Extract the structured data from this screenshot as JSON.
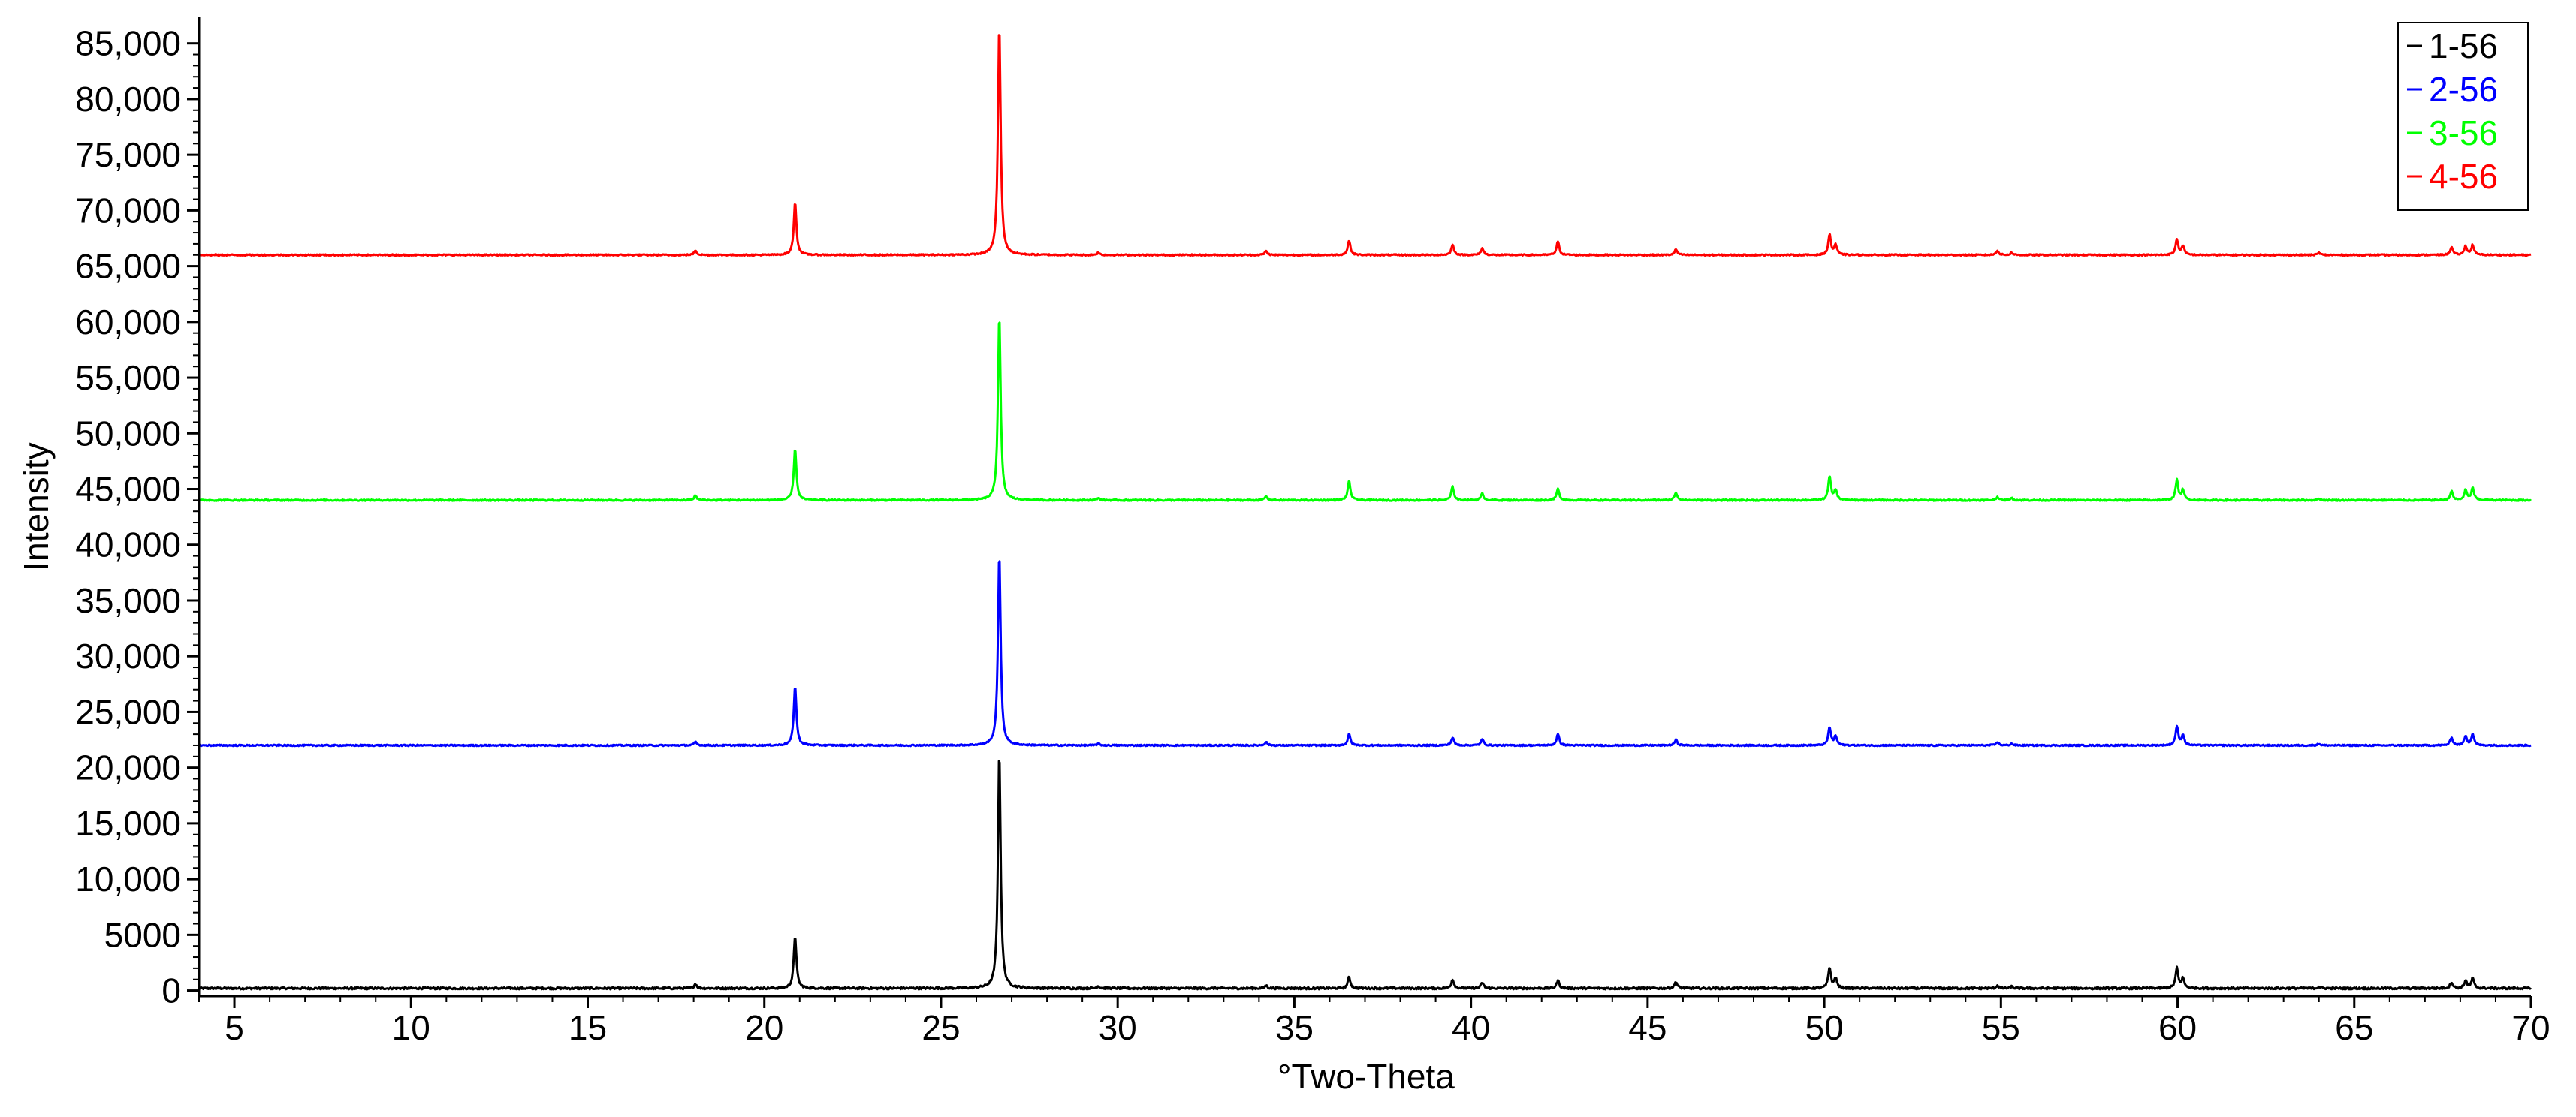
{
  "chart_data": {
    "type": "line",
    "title": "",
    "xlabel": "°Two-Theta",
    "ylabel": "Intensity",
    "xlim": [
      4,
      70
    ],
    "ylim": [
      -500,
      87000
    ],
    "xticks": [
      5,
      10,
      15,
      20,
      25,
      30,
      35,
      40,
      45,
      50,
      55,
      60,
      65,
      70
    ],
    "xtick_labels": [
      "5",
      "10",
      "15",
      "20",
      "25",
      "30",
      "35",
      "40",
      "45",
      "50",
      "55",
      "60",
      "65",
      "70"
    ],
    "yticks": [
      0,
      5000,
      10000,
      15000,
      20000,
      25000,
      30000,
      35000,
      40000,
      45000,
      50000,
      55000,
      60000,
      65000,
      70000,
      75000,
      80000,
      85000
    ],
    "ytick_labels": [
      "0",
      "5000",
      "10,000",
      "15,000",
      "20,000",
      "25,000",
      "30,000",
      "35,000",
      "40,000",
      "45,000",
      "50,000",
      "55,000",
      "60,000",
      "65,000",
      "70,000",
      "75,000",
      "80,000",
      "85,000"
    ],
    "grid": false,
    "legend_position": "top-right",
    "series": [
      {
        "name": "1-56",
        "color": "#000000",
        "baseline": 200,
        "noise": 90,
        "peaks": [
          [
            18.05,
            400
          ],
          [
            20.87,
            4700
          ],
          [
            26.65,
            21300
          ],
          [
            29.45,
            200
          ],
          [
            34.2,
            250
          ],
          [
            36.55,
            1000
          ],
          [
            39.48,
            800
          ],
          [
            40.32,
            500
          ],
          [
            42.46,
            700
          ],
          [
            45.8,
            600
          ],
          [
            50.15,
            1850
          ],
          [
            50.32,
            900
          ],
          [
            54.9,
            250
          ],
          [
            55.3,
            150
          ],
          [
            59.98,
            1800
          ],
          [
            60.15,
            900
          ],
          [
            64.0,
            150
          ],
          [
            67.75,
            550
          ],
          [
            68.15,
            700
          ],
          [
            68.35,
            900
          ]
        ]
      },
      {
        "name": "2-56",
        "color": "#0000ff",
        "baseline": 22000,
        "noise": 60,
        "peaks": [
          [
            18.05,
            300
          ],
          [
            20.87,
            5300
          ],
          [
            26.65,
            17300
          ],
          [
            29.45,
            150
          ],
          [
            34.2,
            300
          ],
          [
            36.55,
            1000
          ],
          [
            39.48,
            700
          ],
          [
            40.32,
            550
          ],
          [
            42.46,
            1000
          ],
          [
            45.8,
            500
          ],
          [
            50.15,
            1600
          ],
          [
            50.32,
            800
          ],
          [
            54.9,
            300
          ],
          [
            55.3,
            150
          ],
          [
            59.98,
            1700
          ],
          [
            60.15,
            900
          ],
          [
            64.0,
            150
          ],
          [
            67.75,
            700
          ],
          [
            68.15,
            850
          ],
          [
            68.35,
            1000
          ]
        ]
      },
      {
        "name": "3-56",
        "color": "#00ff00",
        "baseline": 44000,
        "noise": 60,
        "peaks": [
          [
            18.05,
            400
          ],
          [
            20.87,
            4600
          ],
          [
            26.65,
            16700
          ],
          [
            29.45,
            200
          ],
          [
            34.2,
            350
          ],
          [
            36.55,
            1700
          ],
          [
            39.48,
            1200
          ],
          [
            40.32,
            600
          ],
          [
            42.46,
            1000
          ],
          [
            45.8,
            700
          ],
          [
            50.15,
            2100
          ],
          [
            50.32,
            900
          ],
          [
            54.9,
            300
          ],
          [
            55.3,
            200
          ],
          [
            59.98,
            1800
          ],
          [
            60.15,
            900
          ],
          [
            64.0,
            150
          ],
          [
            67.75,
            800
          ],
          [
            68.15,
            900
          ],
          [
            68.35,
            1100
          ]
        ]
      },
      {
        "name": "4-56",
        "color": "#ff0000",
        "baseline": 66000,
        "noise": 60,
        "peaks": [
          [
            18.05,
            400
          ],
          [
            20.87,
            4700
          ],
          [
            26.65,
            20700
          ],
          [
            29.45,
            200
          ],
          [
            34.2,
            350
          ],
          [
            36.55,
            1300
          ],
          [
            39.48,
            900
          ],
          [
            40.32,
            600
          ],
          [
            42.46,
            1200
          ],
          [
            45.8,
            500
          ],
          [
            50.15,
            1800
          ],
          [
            50.32,
            900
          ],
          [
            54.9,
            400
          ],
          [
            55.3,
            200
          ],
          [
            59.98,
            1400
          ],
          [
            60.15,
            800
          ],
          [
            64.0,
            200
          ],
          [
            67.75,
            700
          ],
          [
            68.15,
            800
          ],
          [
            68.35,
            900
          ]
        ]
      }
    ]
  }
}
